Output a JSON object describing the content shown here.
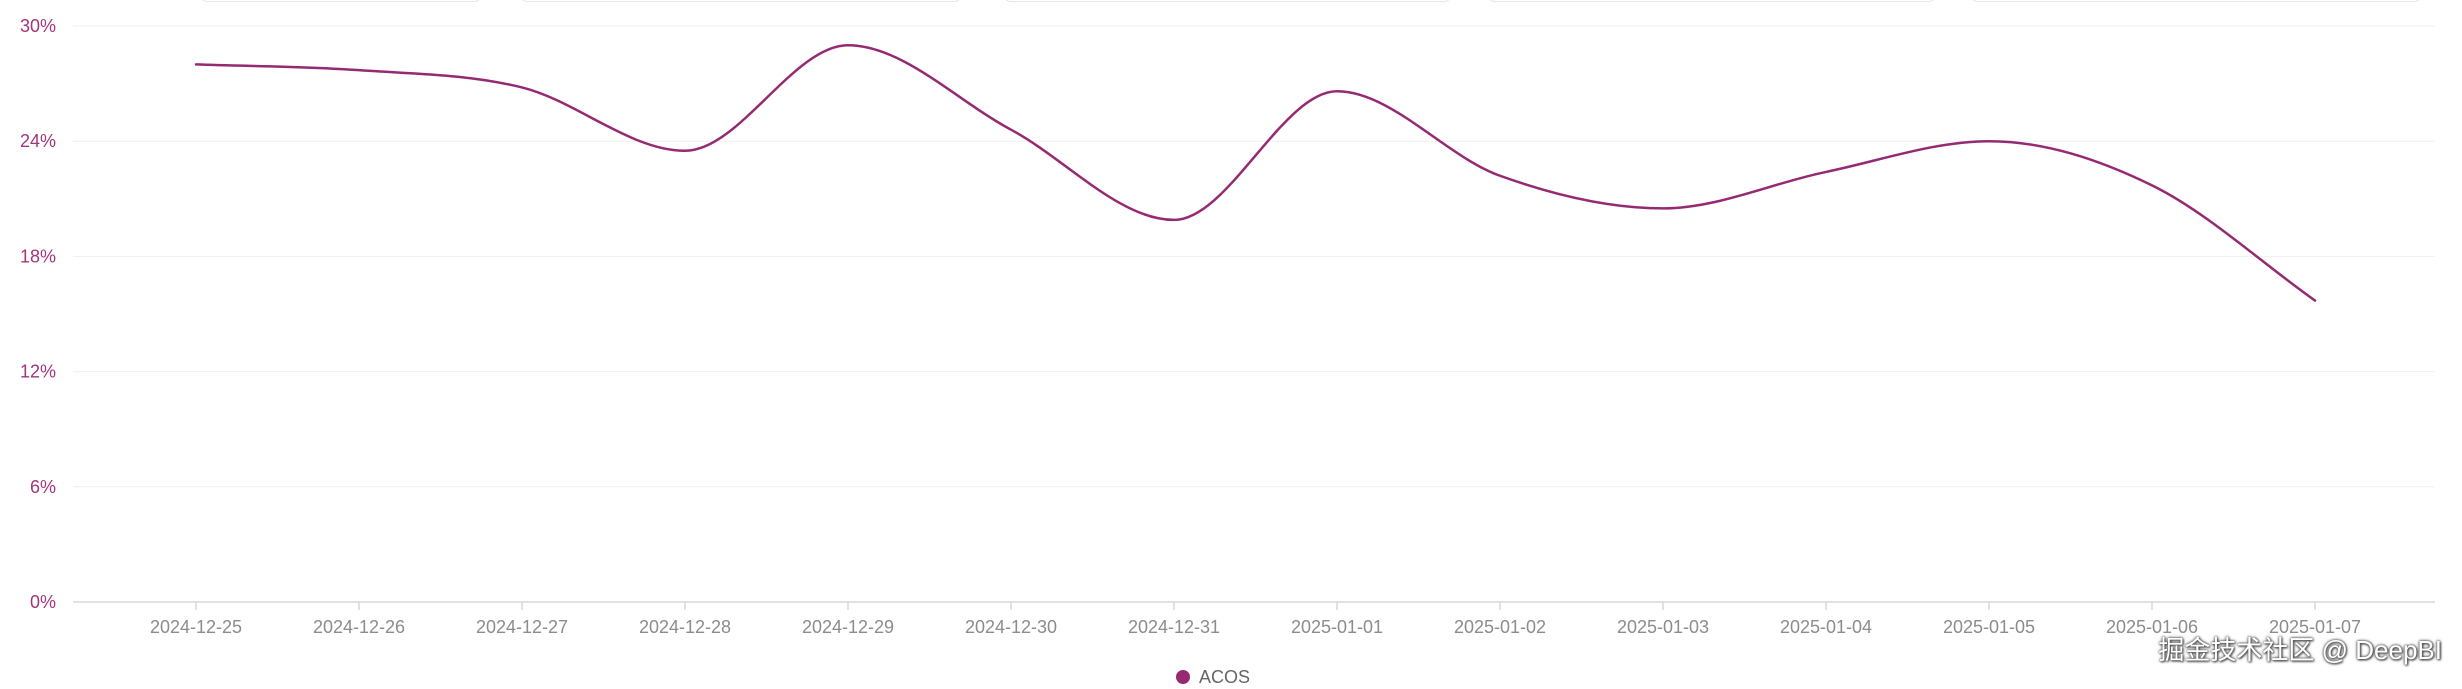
{
  "chart_data": {
    "type": "line",
    "categories": [
      "2024-12-25",
      "2024-12-26",
      "2024-12-27",
      "2024-12-28",
      "2024-12-29",
      "2024-12-30",
      "2024-12-31",
      "2025-01-01",
      "2025-01-02",
      "2025-01-03",
      "2025-01-04",
      "2025-01-05",
      "2025-01-06",
      "2025-01-07"
    ],
    "series": [
      {
        "name": "ACOS",
        "values": [
          28.0,
          27.7,
          26.8,
          23.5,
          29.0,
          24.6,
          19.9,
          26.6,
          22.2,
          20.5,
          22.4,
          24.0,
          21.7,
          15.7
        ]
      }
    ],
    "yticks": [
      "0%",
      "6%",
      "12%",
      "18%",
      "24%",
      "30%"
    ],
    "ylim": [
      0,
      30
    ],
    "grid": true,
    "legend_position": "bottom-center",
    "colors": {
      "series": "#952a73",
      "grid": "#efefef",
      "axis": "#d8d8d8"
    }
  },
  "watermark": "掘金技术社区 @ DeepBI"
}
